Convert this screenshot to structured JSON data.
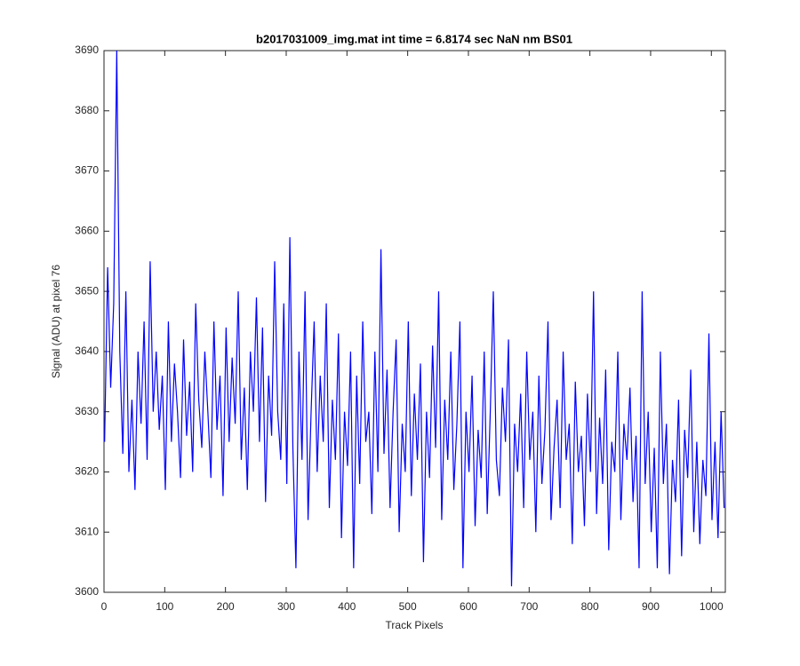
{
  "chart_data": {
    "type": "line",
    "title": "b2017031009_img.mat int time = 6.8174 sec  NaN nm BS01",
    "x_label": "Track Pixels",
    "y_label": "Signal (ADU) at pixel 76",
    "xlim": [
      0,
      1023
    ],
    "ylim": [
      3600,
      3690
    ],
    "xticks": [
      0,
      100,
      200,
      300,
      400,
      500,
      600,
      700,
      800,
      900,
      1000
    ],
    "yticks": [
      3600,
      3610,
      3620,
      3630,
      3640,
      3650,
      3660,
      3670,
      3680,
      3690
    ],
    "grid": false,
    "x": [
      1,
      6,
      11,
      16,
      21,
      26,
      31,
      36,
      41,
      46,
      51,
      56,
      61,
      66,
      71,
      76,
      81,
      86,
      91,
      96,
      101,
      106,
      111,
      116,
      121,
      126,
      131,
      136,
      141,
      146,
      151,
      156,
      161,
      166,
      171,
      176,
      181,
      186,
      191,
      196,
      201,
      206,
      211,
      216,
      221,
      226,
      231,
      236,
      241,
      246,
      251,
      256,
      261,
      266,
      271,
      276,
      281,
      286,
      291,
      296,
      301,
      306,
      311,
      316,
      321,
      326,
      331,
      336,
      341,
      346,
      351,
      356,
      361,
      366,
      371,
      376,
      381,
      386,
      391,
      396,
      401,
      406,
      411,
      416,
      421,
      426,
      431,
      436,
      441,
      446,
      451,
      456,
      461,
      466,
      471,
      476,
      481,
      486,
      491,
      496,
      501,
      506,
      511,
      516,
      521,
      526,
      531,
      536,
      541,
      546,
      551,
      556,
      561,
      566,
      571,
      576,
      581,
      586,
      591,
      596,
      601,
      606,
      611,
      616,
      621,
      626,
      631,
      636,
      641,
      646,
      651,
      656,
      661,
      666,
      671,
      676,
      681,
      686,
      691,
      696,
      701,
      706,
      711,
      716,
      721,
      726,
      731,
      736,
      741,
      746,
      751,
      756,
      761,
      766,
      771,
      776,
      781,
      786,
      791,
      796,
      801,
      806,
      811,
      816,
      821,
      826,
      831,
      836,
      841,
      846,
      851,
      856,
      861,
      866,
      871,
      876,
      881,
      886,
      891,
      896,
      901,
      906,
      911,
      916,
      921,
      926,
      931,
      936,
      941,
      946,
      951,
      956,
      961,
      966,
      971,
      976,
      981,
      986,
      991,
      996,
      1001,
      1006,
      1011,
      1016,
      1021
    ],
    "series": [
      {
        "color": "#0000ff",
        "values": [
          3625,
          3654,
          3634,
          3648,
          3690,
          3640,
          3623,
          3650,
          3620,
          3632,
          3617,
          3640,
          3628,
          3645,
          3622,
          3655,
          3630,
          3640,
          3627,
          3636,
          3617,
          3645,
          3625,
          3638,
          3630,
          3619,
          3642,
          3626,
          3635,
          3620,
          3648,
          3632,
          3624,
          3640,
          3630,
          3619,
          3645,
          3627,
          3636,
          3616,
          3644,
          3625,
          3639,
          3628,
          3650,
          3622,
          3634,
          3617,
          3640,
          3630,
          3649,
          3625,
          3644,
          3615,
          3636,
          3626,
          3655,
          3630,
          3622,
          3648,
          3618,
          3659,
          3624,
          3604,
          3640,
          3622,
          3650,
          3612,
          3630,
          3645,
          3620,
          3636,
          3625,
          3648,
          3614,
          3632,
          3622,
          3643,
          3609,
          3630,
          3621,
          3640,
          3604,
          3636,
          3618,
          3645,
          3625,
          3630,
          3613,
          3640,
          3620,
          3657,
          3623,
          3637,
          3614,
          3630,
          3642,
          3610,
          3628,
          3620,
          3645,
          3616,
          3633,
          3622,
          3638,
          3605,
          3630,
          3619,
          3641,
          3624,
          3650,
          3612,
          3632,
          3622,
          3640,
          3617,
          3628,
          3645,
          3604,
          3630,
          3620,
          3636,
          3611,
          3627,
          3619,
          3640,
          3613,
          3630,
          3650,
          3622,
          3616,
          3634,
          3625,
          3642,
          3601,
          3628,
          3620,
          3633,
          3614,
          3640,
          3622,
          3630,
          3610,
          3636,
          3618,
          3627,
          3645,
          3612,
          3624,
          3632,
          3614,
          3640,
          3622,
          3628,
          3608,
          3635,
          3620,
          3626,
          3611,
          3633,
          3620,
          3650,
          3613,
          3629,
          3618,
          3637,
          3607,
          3625,
          3620,
          3640,
          3612,
          3628,
          3622,
          3634,
          3615,
          3626,
          3604,
          3650,
          3618,
          3630,
          3610,
          3624,
          3604,
          3640,
          3618,
          3628,
          3603,
          3622,
          3615,
          3632,
          3606,
          3627,
          3619,
          3637,
          3610,
          3625,
          3608,
          3622,
          3616,
          3643,
          3612,
          3625,
          3609,
          3630,
          3614
        ]
      }
    ]
  }
}
